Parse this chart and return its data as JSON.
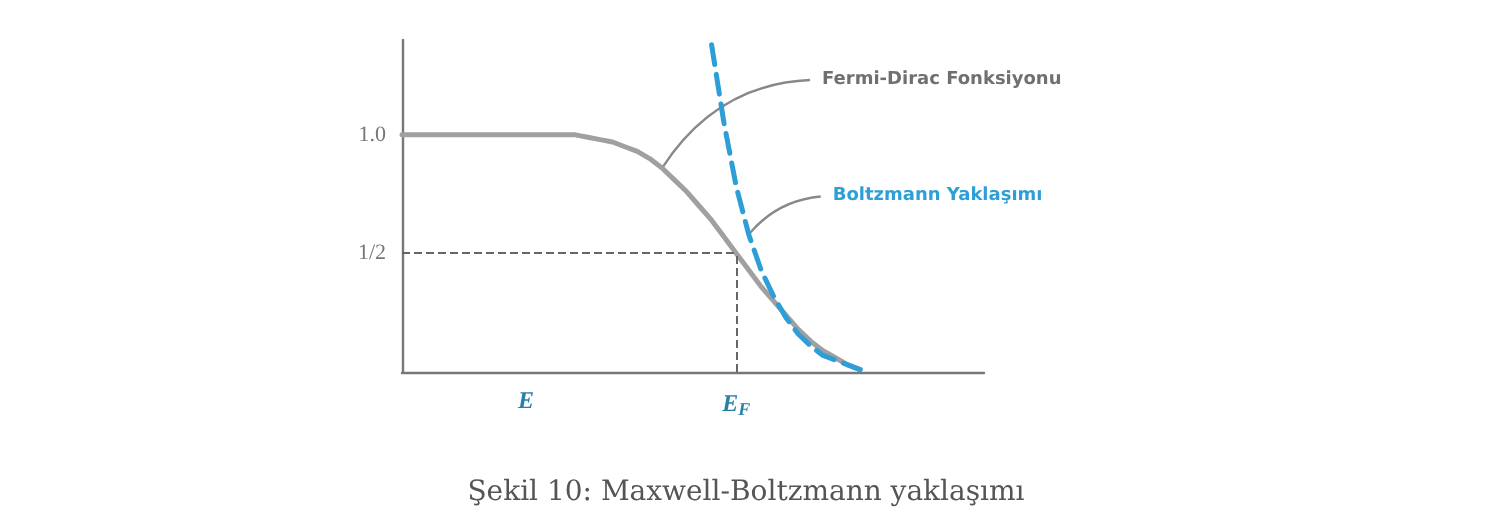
{
  "chart_data": {
    "type": "line",
    "title": "Şekil 10: Maxwell-Boltzmann yaklaşımı",
    "xlabel": "E",
    "categories": [
      null,
      null,
      null,
      null,
      null,
      null,
      null,
      null,
      null,
      null,
      null,
      null,
      null,
      null,
      null,
      null,
      null,
      null,
      null,
      null,
      null,
      null,
      null,
      null,
      null,
      null,
      null,
      "E$_{F}$",
      null,
      null,
      null,
      null,
      null,
      null,
      null,
      null,
      null,
      null,
      null,
      null,
      null,
      null,
      null,
      null,
      null,
      null,
      null,
      null
    ],
    "series": [
      {
        "name": "Fermi-Dirac Fonksiyonu",
        "color": "#a0a0a0",
        "line_style": "solid",
        "values": [
          1,
          1,
          1,
          1,
          1,
          1,
          1,
          1,
          1,
          1,
          1,
          1,
          1,
          1,
          1,
          0.99,
          0.98,
          0.97,
          0.95,
          0.93,
          0.9,
          0.86,
          0.81,
          0.76,
          0.7,
          0.64,
          0.57,
          0.5,
          0.43,
          0.36,
          0.3,
          0.24,
          0.18,
          0.13,
          0.09,
          0.06,
          0.03,
          0.01,
          null,
          null,
          null,
          null,
          null,
          null,
          null,
          null,
          null,
          null
        ]
      },
      {
        "name": "Boltzmann Yaklaşımı",
        "color": "#2e9fd6",
        "line_style": "dashed",
        "values": [
          null,
          null,
          null,
          null,
          null,
          null,
          null,
          null,
          null,
          null,
          null,
          null,
          null,
          null,
          null,
          null,
          null,
          null,
          null,
          null,
          null,
          null,
          null,
          null,
          null,
          1.38,
          1.05,
          0.78,
          0.58,
          0.43,
          0.32,
          0.23,
          0.16,
          0.11,
          0.07,
          0.05,
          0.03,
          0.01,
          null,
          null,
          null,
          null,
          null,
          null,
          null,
          null,
          null,
          null
        ]
      }
    ],
    "ylim": [
      0,
      1.4
    ],
    "yticks": [
      {
        "value": 1,
        "label": "1.0"
      },
      {
        "value": 0.5,
        "label": "1/2"
      }
    ],
    "ref_lines": [
      {
        "axis": "y",
        "value": 0.5,
        "line_style": "dashed",
        "color": "#666666"
      },
      {
        "axis": "x",
        "value": "E$_{F}$",
        "line_style": "dashed",
        "color": "#666666"
      }
    ],
    "legend": false,
    "grid": false,
    "marker": "none"
  }
}
